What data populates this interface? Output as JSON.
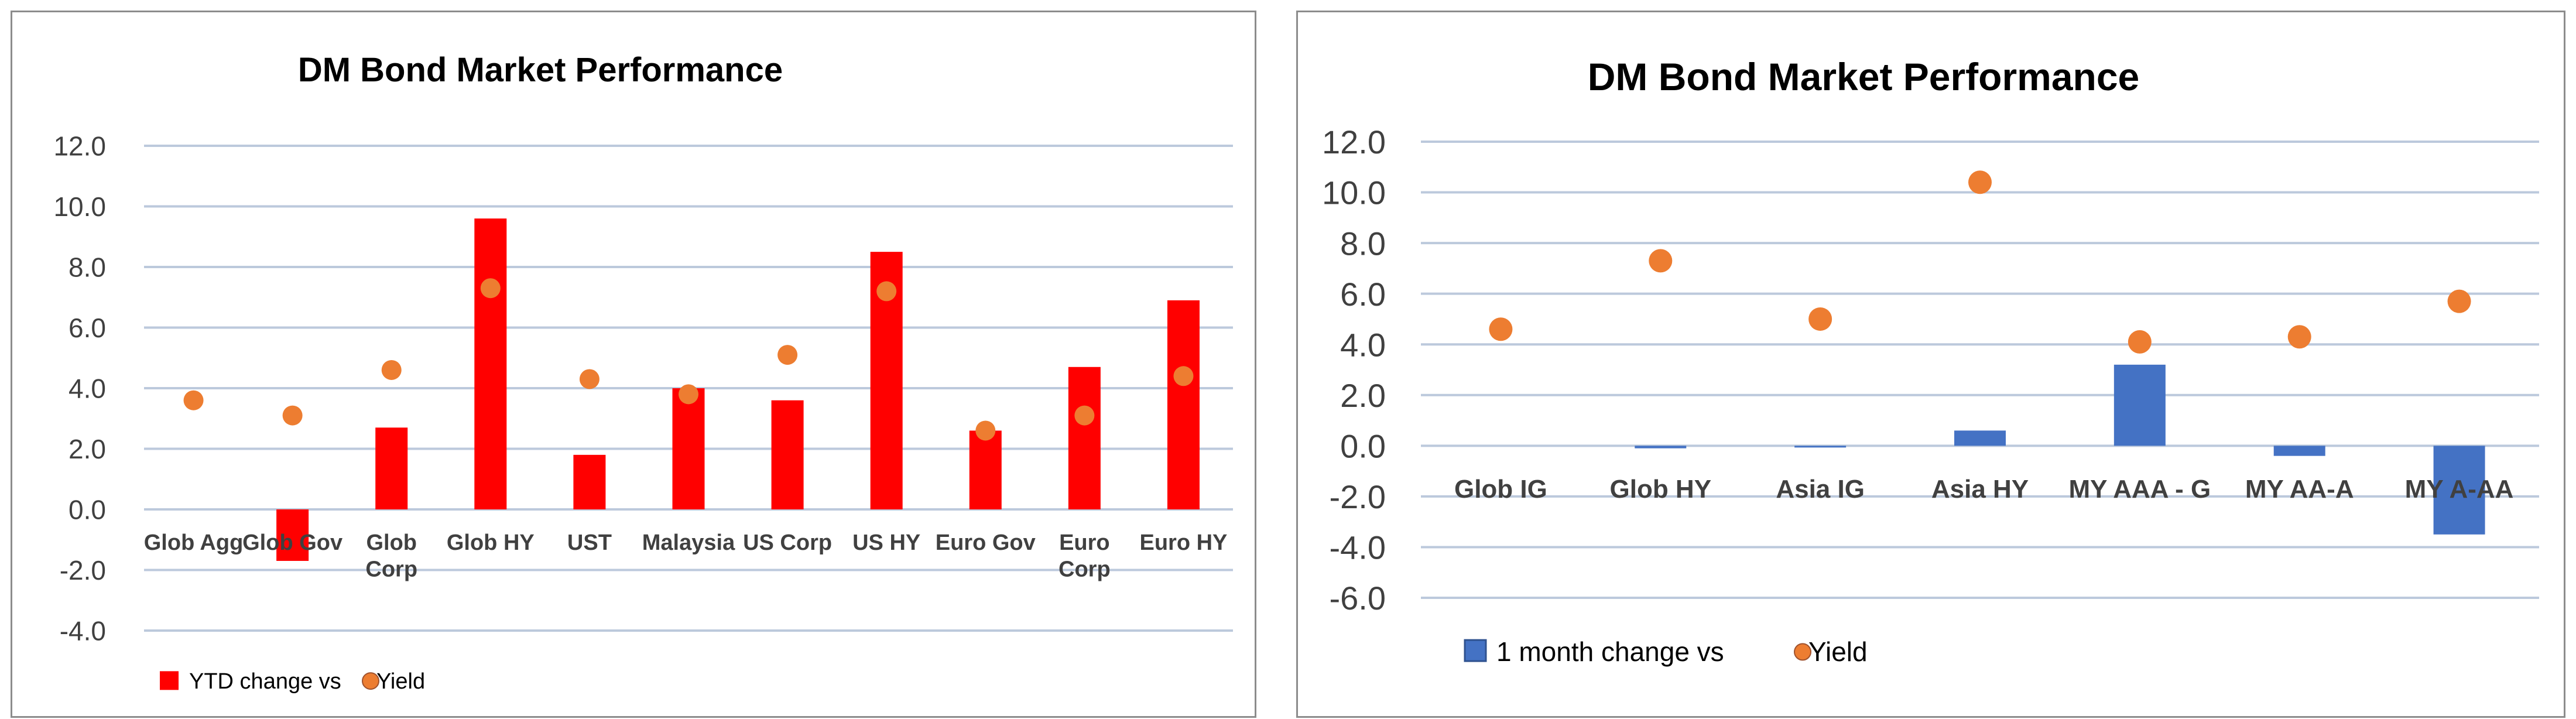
{
  "chart_data": [
    {
      "type": "bar",
      "title": "DM Bond Market Performance",
      "categories": [
        "Glob Agg",
        "Glob Gov",
        "Glob Corp",
        "Glob HY",
        "UST",
        "Malaysia",
        "US Corp",
        "US HY",
        "Euro Gov",
        "Euro Corp",
        "Euro HY"
      ],
      "series": [
        {
          "name": "YTD change vs",
          "type": "bar",
          "color": "#ff0000",
          "values": [
            0.0,
            -1.7,
            2.7,
            9.6,
            1.8,
            4.0,
            3.6,
            8.5,
            2.6,
            4.7,
            6.9
          ]
        },
        {
          "name": "Yield",
          "type": "scatter",
          "color": "#ed7d31",
          "values": [
            3.6,
            3.1,
            4.6,
            7.3,
            4.3,
            3.8,
            5.1,
            7.2,
            2.6,
            3.1,
            4.4
          ]
        }
      ],
      "ylim": [
        -4.0,
        12.0
      ],
      "yticks": [
        "12.0",
        "10.0",
        "8.0",
        "6.0",
        "4.0",
        "2.0",
        "0.0",
        "-2.0",
        "-4.0"
      ],
      "grid": true,
      "legend": "bottom-left"
    },
    {
      "type": "bar",
      "title": "DM Bond Market Performance",
      "categories": [
        "Glob IG",
        "Glob HY",
        "Asia IG",
        "Asia HY",
        "MY AAA - G",
        "MY AA-A",
        "MY A-AA"
      ],
      "series": [
        {
          "name": "1 month change vs",
          "type": "bar",
          "color": "#4472c4",
          "values": [
            0.0,
            -0.1,
            -0.05,
            0.6,
            3.2,
            -0.4,
            -3.5
          ]
        },
        {
          "name": "Yield",
          "type": "scatter",
          "color": "#ed7d31",
          "values": [
            4.6,
            7.3,
            5.0,
            10.4,
            4.1,
            4.3,
            5.7
          ]
        }
      ],
      "ylim": [
        -6.0,
        12.0
      ],
      "yticks": [
        "12.0",
        "10.0",
        "8.0",
        "6.0",
        "4.0",
        "2.0",
        "0.0",
        "-2.0",
        "-4.0",
        "-6.0"
      ],
      "grid": true,
      "legend": "bottom-left"
    }
  ]
}
